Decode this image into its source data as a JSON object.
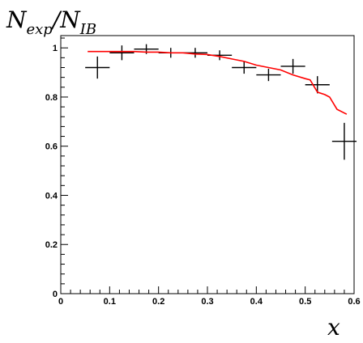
{
  "chart_data": {
    "type": "scatter",
    "title": "",
    "ylabel": "N_exp/N_IB",
    "xlabel": "x",
    "xlim": [
      0,
      0.6
    ],
    "ylim": [
      0,
      1.05
    ],
    "x_ticks": [
      0,
      0.1,
      0.2,
      0.3,
      0.4,
      0.5,
      0.6
    ],
    "x_tick_labels": [
      "0",
      "0.1",
      "0.2",
      "0.3",
      "0.4",
      "0.5",
      "0.6"
    ],
    "y_ticks": [
      0,
      0.2,
      0.4,
      0.6,
      0.8,
      1
    ],
    "y_tick_labels": [
      "0",
      "0.2",
      "0.4",
      "0.6",
      "0.8",
      "1"
    ],
    "grid": false,
    "series": [
      {
        "kind": "points_with_errors",
        "color": "#000000",
        "points": [
          {
            "x": 0.075,
            "y": 0.92,
            "xerr": 0.025,
            "yerr": 0.045
          },
          {
            "x": 0.125,
            "y": 0.98,
            "xerr": 0.025,
            "yerr": 0.03
          },
          {
            "x": 0.175,
            "y": 0.995,
            "xerr": 0.025,
            "yerr": 0.02
          },
          {
            "x": 0.225,
            "y": 0.98,
            "xerr": 0.025,
            "yerr": 0.02
          },
          {
            "x": 0.275,
            "y": 0.98,
            "xerr": 0.025,
            "yerr": 0.02
          },
          {
            "x": 0.325,
            "y": 0.97,
            "xerr": 0.025,
            "yerr": 0.02
          },
          {
            "x": 0.375,
            "y": 0.92,
            "xerr": 0.025,
            "yerr": 0.025
          },
          {
            "x": 0.425,
            "y": 0.89,
            "xerr": 0.025,
            "yerr": 0.025
          },
          {
            "x": 0.475,
            "y": 0.925,
            "xerr": 0.025,
            "yerr": 0.03
          },
          {
            "x": 0.525,
            "y": 0.85,
            "xerr": 0.025,
            "yerr": 0.035
          },
          {
            "x": 0.58,
            "y": 0.62,
            "xerr": 0.025,
            "yerr": 0.075
          }
        ]
      },
      {
        "kind": "line",
        "color": "#ff0000",
        "x": [
          0.055,
          0.08,
          0.1,
          0.125,
          0.15,
          0.175,
          0.2,
          0.225,
          0.25,
          0.275,
          0.3,
          0.325,
          0.35,
          0.375,
          0.4,
          0.425,
          0.45,
          0.475,
          0.5,
          0.51,
          0.525,
          0.54,
          0.55,
          0.565,
          0.585
        ],
        "y": [
          0.985,
          0.985,
          0.985,
          0.985,
          0.985,
          0.983,
          0.983,
          0.98,
          0.98,
          0.975,
          0.973,
          0.965,
          0.955,
          0.945,
          0.93,
          0.92,
          0.91,
          0.89,
          0.875,
          0.87,
          0.82,
          0.81,
          0.8,
          0.75,
          0.73
        ]
      }
    ]
  }
}
